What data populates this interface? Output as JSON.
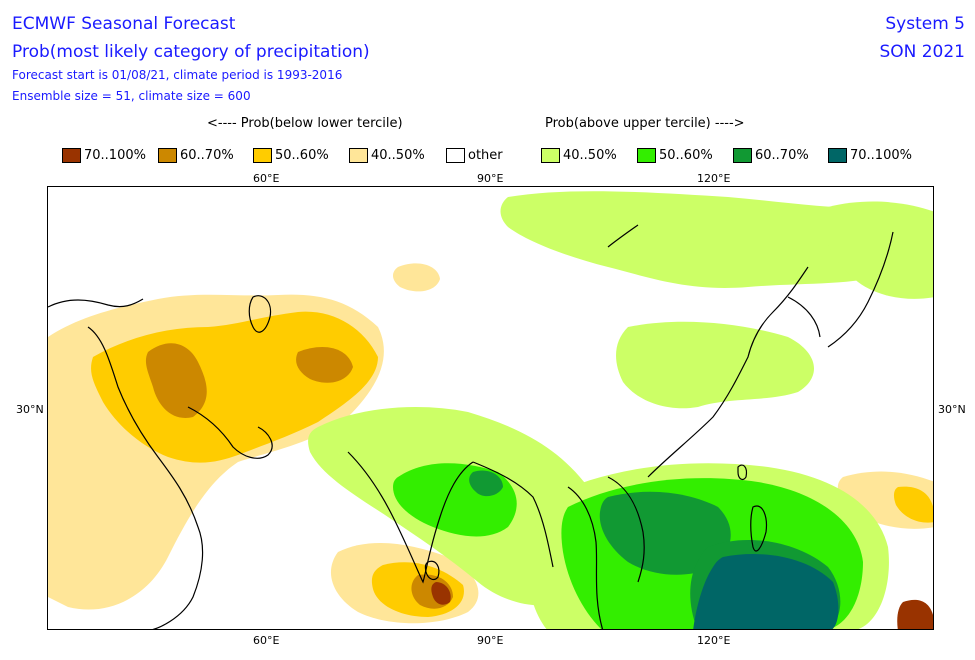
{
  "header": {
    "title": "ECMWF Seasonal Forecast",
    "subtitle": "Prob(most likely category of precipitation)",
    "forecast_info": "Forecast start is 01/08/21, climate period is 1993-2016",
    "ensemble_info": "Ensemble size = 51, climate size = 600",
    "system": "System 5",
    "season": "SON 2021"
  },
  "legend": {
    "below_heading": "<---- Prob(below lower tercile)",
    "above_heading": "Prob(above upper tercile) ---->",
    "items": [
      {
        "label": "70..100%",
        "color": "#993300"
      },
      {
        "label": "60..70%",
        "color": "#cc8800"
      },
      {
        "label": "50..60%",
        "color": "#ffcc00"
      },
      {
        "label": "40..50%",
        "color": "#ffe699"
      },
      {
        "label": "other",
        "color": "#ffffff"
      },
      {
        "label": "40..50%",
        "color": "#ccff66"
      },
      {
        "label": "50..60%",
        "color": "#33ee00"
      },
      {
        "label": "60..70%",
        "color": "#119933"
      },
      {
        "label": "70..100%",
        "color": "#006666"
      }
    ]
  },
  "axes": {
    "top_labels": [
      "60°E",
      "90°E",
      "120°E"
    ],
    "bottom_labels": [
      "60°E",
      "90°E",
      "120°E"
    ],
    "left_label": "30°N",
    "right_label": "30°N"
  }
}
